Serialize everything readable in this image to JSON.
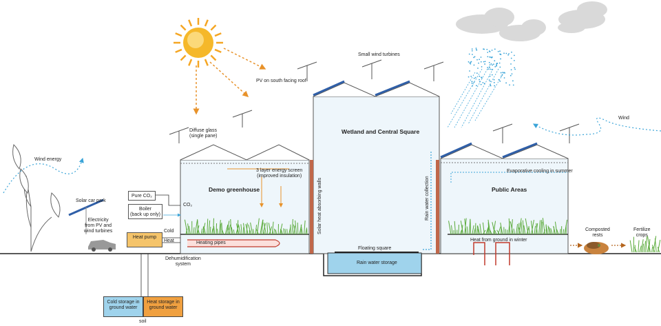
{
  "labels": {
    "wind_energy_left": "Wind energy",
    "solar_car_park": "Solar car park",
    "electricity": "Electricity\nfrom PV and\nwind turbines",
    "pure_co2": "Pure CO₂",
    "boiler": "Boiler\n(back up only)",
    "heat_pump": "Heat pump",
    "co2": "CO₂",
    "cold": "Cold",
    "heat": "Heat",
    "heating_pipes": "Heating pipes",
    "dehumidification": "Dehumidification\nsystem",
    "cold_storage": "Cold storage in\nground water",
    "heat_storage": "Heat storage in\nground water",
    "soil": "soil",
    "diffuse_glass": "Diffuse glass\n(single pane)",
    "energy_screen": "3 layer energy screen\n(improved insulation)",
    "demo_greenhouse": "Demo greenhouse",
    "pv_south_roof": "PV on south facing roof",
    "small_wind_turbines": "Small wind turbines",
    "wetland": "Wetland and Central Square",
    "solar_heat_walls": "Solar heat absorbing walls",
    "floating_square": "Floating square",
    "rain_water_storage": "Rain water storage",
    "rain_water_collection": "Rain water collection",
    "evaporative_cooling": "Evaporative cooling in summer",
    "public_areas": "Public Areas",
    "heat_from_ground": "Heat from ground in winter",
    "wind_right": "Wind",
    "composted_rests": "Composted\nrests",
    "fertilize_crops": "Fertilize\ncrops"
  },
  "colors": {
    "ground_line": "#222222",
    "greenhouse_fill": "#eef6fb",
    "greenhouse_stroke": "#555555",
    "pv_panel": "#2f5fa8",
    "sun": "#f5a623",
    "arrow_orange": "#e8922a",
    "wall_brown": "#c0674a",
    "pipe_red": "#c0392b",
    "water_blue": "#9fd3ec",
    "wind_dots": "#3aa4d8",
    "cold_storage": "#9fd3ec",
    "heat_storage": "#f0a040",
    "heat_pump": "#f5c46a",
    "grass": "#5aaa3a"
  }
}
